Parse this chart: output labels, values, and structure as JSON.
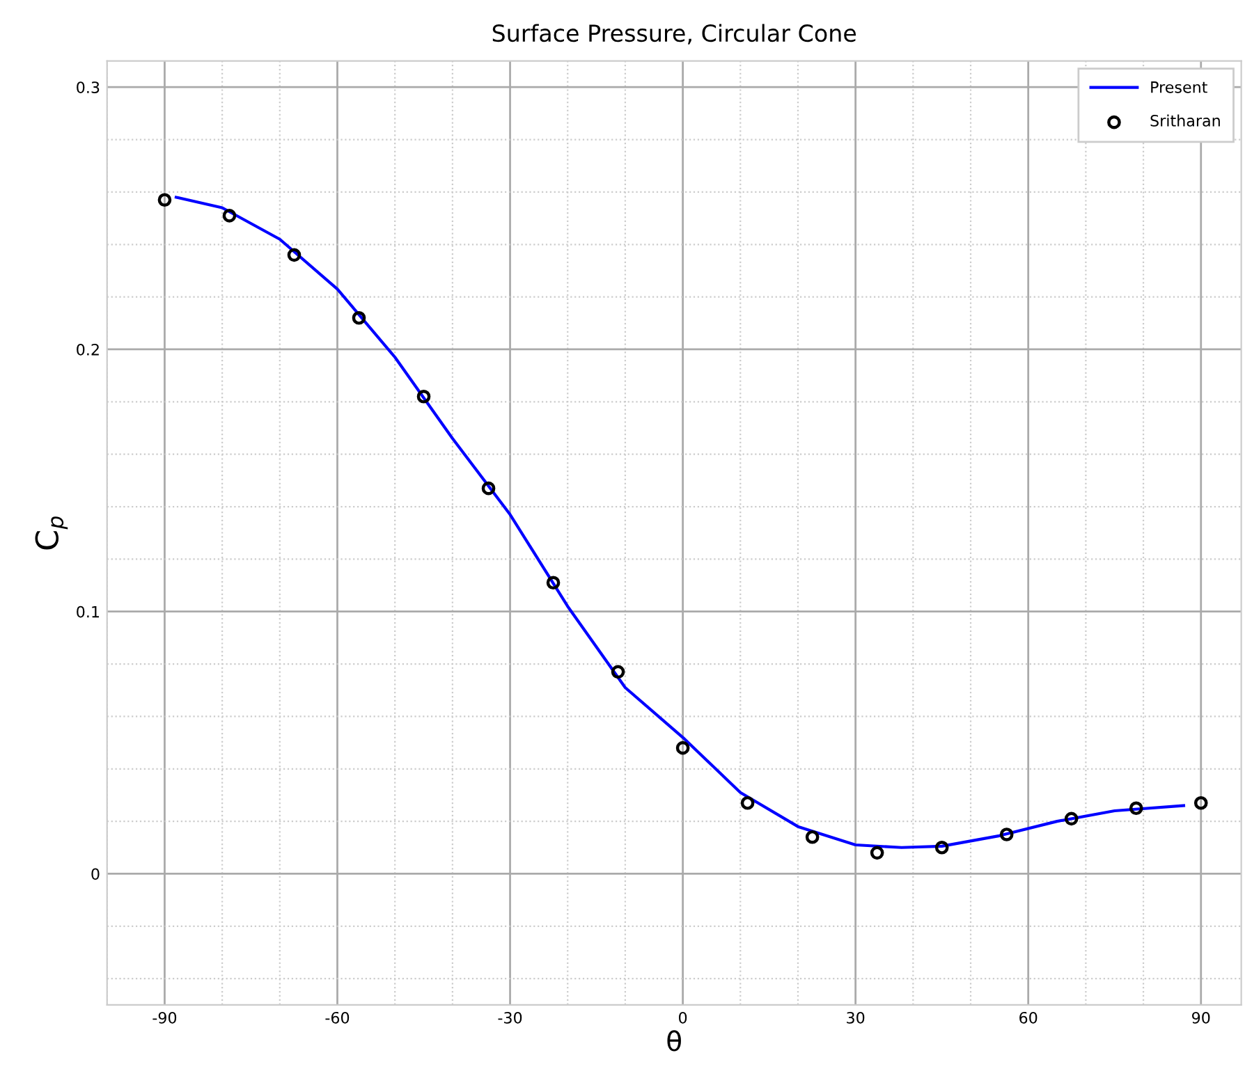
{
  "chart_data": {
    "type": "line",
    "title": "Surface Pressure, Circular Cone",
    "xlabel": "θ",
    "ylabel": "C$_{p}$",
    "series": [
      {
        "name": "Present",
        "color": "#0000ff",
        "marker": "none",
        "line_style": "solid",
        "x": [
          -88,
          -80,
          -70,
          -60,
          -50,
          -40,
          -30,
          -20,
          -10,
          0,
          10,
          20,
          30,
          38,
          45,
          55,
          65,
          75,
          87
        ],
        "values": [
          0.258,
          0.254,
          0.242,
          0.223,
          0.197,
          0.166,
          0.137,
          0.102,
          0.071,
          0.052,
          0.031,
          0.018,
          0.011,
          0.01,
          0.0105,
          0.0145,
          0.02,
          0.024,
          0.026
        ]
      },
      {
        "name": "Sritharan",
        "type": "scatter",
        "color": "#000000",
        "marker": "circle",
        "x": [
          -90,
          -78.75,
          -67.5,
          -56.25,
          -45,
          -33.75,
          -22.5,
          -11.25,
          0,
          11.25,
          22.5,
          33.75,
          45,
          56.25,
          67.5,
          78.75,
          90
        ],
        "values": [
          0.257,
          0.251,
          0.236,
          0.212,
          0.182,
          0.147,
          0.111,
          0.077,
          0.048,
          0.027,
          0.014,
          0.008,
          0.01,
          0.015,
          0.021,
          0.025,
          0.027
        ]
      }
    ],
    "xlim": [
      -100,
      97
    ],
    "ylim": [
      -0.05,
      0.31
    ],
    "xticks": [
      {
        "value": -100,
        "label": null
      },
      -90,
      {
        "value": -80,
        "label": null
      },
      {
        "value": -70,
        "label": null
      },
      -60,
      {
        "value": -50,
        "label": null
      },
      {
        "value": -40,
        "label": null
      },
      -30,
      {
        "value": -20,
        "label": null
      },
      {
        "value": -10,
        "label": null
      },
      0,
      {
        "value": 10,
        "label": null
      },
      {
        "value": 20,
        "label": null
      },
      30,
      {
        "value": 40,
        "label": null
      },
      {
        "value": 50,
        "label": null
      },
      60,
      {
        "value": 70,
        "label": null
      },
      {
        "value": 80,
        "label": null
      },
      90
    ],
    "yticks": [
      {
        "value": -0.04,
        "label": null
      },
      {
        "value": -0.02,
        "label": null
      },
      0,
      {
        "value": 0.02,
        "label": null
      },
      {
        "value": 0.04,
        "label": null
      },
      {
        "value": 0.06,
        "label": null
      },
      {
        "value": 0.08,
        "label": null
      },
      0.1,
      {
        "value": 0.12,
        "label": null
      },
      {
        "value": 0.14,
        "label": null
      },
      {
        "value": 0.16,
        "label": null
      },
      {
        "value": 0.18,
        "label": null
      },
      0.2,
      {
        "value": 0.22,
        "label": null
      },
      {
        "value": 0.24,
        "label": null
      },
      {
        "value": 0.26,
        "label": null
      },
      {
        "value": 0.28,
        "label": null
      },
      0.3
    ],
    "grid": true,
    "legend": "top right"
  }
}
